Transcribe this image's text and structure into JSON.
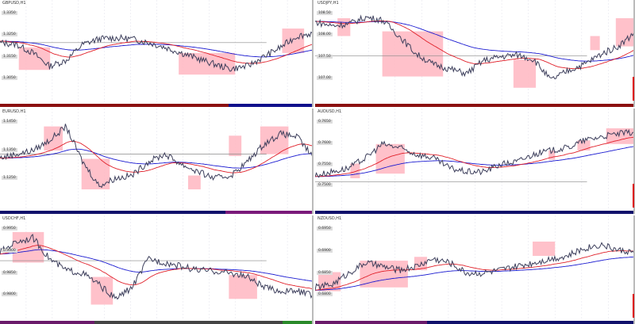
{
  "colors": {
    "price": "#3d3f5c",
    "ma_fast": "#e0202a",
    "ma_slow": "#1a1ad0",
    "zone": "#ffb6c1",
    "grid": "#e6e6ee",
    "ref": "#888888"
  },
  "panels": [
    {
      "title": "GBPUSD,H1",
      "axis_labels": [
        "1.3350",
        "1.3250",
        "1.3150",
        "1.3050"
      ],
      "ylim": [
        0,
        100
      ],
      "anchors": [
        59,
        57,
        48,
        34,
        40,
        57,
        63,
        64,
        63,
        59,
        54,
        48,
        42,
        36,
        31,
        34,
        44,
        54,
        66,
        69
      ],
      "ref_line": 59,
      "zones": [
        [
          6,
          16,
          30,
          54
        ],
        [
          57,
          75,
          25,
          48
        ],
        [
          90,
          97,
          48,
          74
        ]
      ],
      "strip": [
        [
          "#8b1010",
          73
        ],
        [
          "#10108b",
          27
        ]
      ],
      "marker": false
    },
    {
      "title": "USDJPY,H1",
      "axis_labels": [
        "108.50",
        "108.00",
        "107.50",
        "107.00"
      ],
      "ylim": [
        0,
        100
      ],
      "anchors": [
        81,
        77,
        79,
        86,
        83,
        66,
        47,
        36,
        31,
        26,
        40,
        44,
        46,
        41,
        19,
        29,
        36,
        47,
        55,
        70
      ],
      "ref_line": 45,
      "zones": [
        [
          7,
          11,
          66,
          85
        ],
        [
          21,
          40,
          23,
          71
        ],
        [
          62,
          69,
          11,
          41
        ],
        [
          86,
          89,
          51,
          66
        ],
        [
          94,
          100,
          55,
          85
        ]
      ],
      "strip": [
        [
          "#8b1010",
          100
        ]
      ],
      "marker": true
    },
    {
      "title": "EURUSD,H1",
      "axis_labels": [
        "1.1450",
        "1.1350",
        "1.1250"
      ],
      "ylim": [
        0,
        100
      ],
      "anchors": [
        51,
        55,
        59,
        70,
        85,
        47,
        21,
        29,
        32,
        47,
        55,
        44,
        36,
        29,
        32,
        47,
        66,
        77,
        74,
        51
      ],
      "ref_line": 55,
      "zones": [
        [
          14,
          20,
          59,
          85
        ],
        [
          26,
          35,
          17,
          50
        ],
        [
          60,
          64,
          17,
          32
        ],
        [
          73,
          77,
          53,
          75
        ],
        [
          83,
          92,
          55,
          85
        ]
      ],
      "strip": [
        [
          "#10106b",
          72
        ],
        [
          "#7a1a7a",
          28
        ]
      ],
      "marker": false
    },
    {
      "title": "AUDUSD,H1",
      "axis_labels": [
        "0.7650",
        "0.7600",
        "0.7550",
        "0.7500"
      ],
      "ylim": [
        0,
        100
      ],
      "anchors": [
        32,
        36,
        40,
        51,
        66,
        62,
        55,
        51,
        40,
        36,
        36,
        44,
        47,
        55,
        59,
        62,
        70,
        74,
        77,
        79
      ],
      "ref_line": 25,
      "zones": [
        [
          11,
          14,
          29,
          45
        ],
        [
          19,
          28,
          34,
          66
        ],
        [
          73,
          75,
          49,
          59
        ],
        [
          82,
          86,
          59,
          70
        ],
        [
          91,
          100,
          66,
          83
        ]
      ],
      "strip": [
        [
          "#10106b",
          100
        ]
      ],
      "marker": true
    },
    {
      "title": "USDCHF,H1",
      "axis_labels": [
        "0.9950",
        "0.9900",
        "0.9850",
        "0.9800"
      ],
      "ylim": [
        0,
        100
      ],
      "anchors": [
        66,
        77,
        81,
        59,
        47,
        44,
        32,
        17,
        29,
        59,
        55,
        51,
        47,
        46,
        44,
        40,
        29,
        25,
        25,
        21
      ],
      "ref_line": 57,
      "zones": [
        [
          4,
          14,
          55,
          87
        ],
        [
          29,
          36,
          11,
          40
        ],
        [
          73,
          82,
          17,
          42
        ]
      ],
      "strip": [
        [
          "#6a1a6a",
          30
        ],
        [
          "#444",
          60
        ],
        [
          "#2a8a2a",
          10
        ]
      ],
      "marker": false
    },
    {
      "title": "NZDUSD,H1",
      "axis_labels": [
        "0.6950",
        "0.6900",
        "0.6850",
        "0.6800"
      ],
      "ylim": [
        0,
        100
      ],
      "anchors": [
        29,
        32,
        44,
        55,
        51,
        47,
        51,
        59,
        55,
        44,
        44,
        47,
        51,
        55,
        59,
        62,
        70,
        74,
        68,
        66
      ],
      "ref_line": null,
      "zones": [
        [
          1,
          8,
          25,
          45
        ],
        [
          14,
          29,
          29,
          57
        ],
        [
          31,
          35,
          47,
          61
        ],
        [
          68,
          75,
          62,
          77
        ]
      ],
      "strip": [
        [
          "#6a1a6a",
          35
        ],
        [
          "#10106b",
          65
        ]
      ],
      "marker": true
    }
  ]
}
